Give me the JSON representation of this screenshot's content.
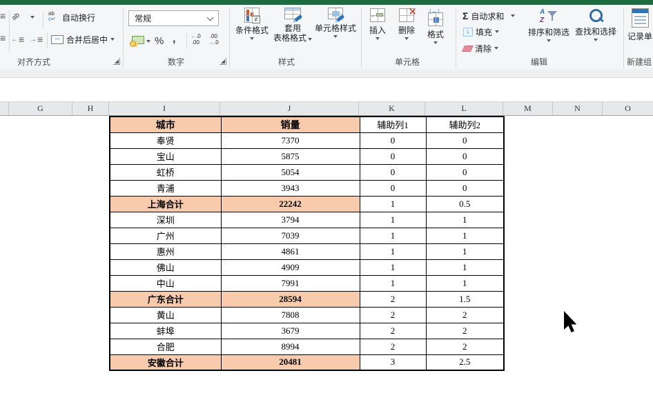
{
  "ribbon": {
    "alignment": {
      "group_label": "对齐方式",
      "wrap_text_label": "自动换行",
      "merge_center_label": "合并后居中"
    },
    "number": {
      "group_label": "数字",
      "format_value": "常规",
      "percent_label": "%",
      "comma_label": ",",
      "inc_top": ".0",
      "inc_bottom": ".00",
      "dec_top": ".00",
      "dec_bottom": ".0"
    },
    "styles": {
      "group_label": "样式",
      "conditional_formatting_label": "条件格式",
      "format_as_table_line1": "套用",
      "format_as_table_line2": "表格格式",
      "cell_styles_label": "单元格样式"
    },
    "cells": {
      "group_label": "单元格",
      "insert_label": "插入",
      "delete_label": "删除",
      "format_label": "格式"
    },
    "editing": {
      "group_label": "编辑",
      "autosum_label": "自动求和",
      "fill_label": "填充",
      "clear_label": "清除",
      "sort_filter_label": "排序和筛选",
      "find_select_label": "查找和选择"
    },
    "new_group": {
      "group_label": "新建组",
      "record_form_label": "记录单"
    }
  },
  "sheet": {
    "column_letters": [
      "G",
      "H",
      "I",
      "J",
      "K",
      "L",
      "M",
      "N",
      "O"
    ],
    "colors": {
      "summary_fill": "#F8CBAD",
      "titlebar_green": "#1E6B41"
    },
    "table": {
      "columns": [
        "城市",
        "销量",
        "辅助列1",
        "辅助列2"
      ],
      "rows": [
        {
          "cells": [
            "奉贤",
            "7370",
            "0",
            "0"
          ],
          "summary": false
        },
        {
          "cells": [
            "宝山",
            "5875",
            "0",
            "0"
          ],
          "summary": false
        },
        {
          "cells": [
            "虹桥",
            "5054",
            "0",
            "0"
          ],
          "summary": false
        },
        {
          "cells": [
            "青浦",
            "3943",
            "0",
            "0"
          ],
          "summary": false
        },
        {
          "cells": [
            "上海合计",
            "22242",
            "1",
            "0.5"
          ],
          "summary": true
        },
        {
          "cells": [
            "深圳",
            "3794",
            "1",
            "1"
          ],
          "summary": false
        },
        {
          "cells": [
            "广州",
            "7039",
            "1",
            "1"
          ],
          "summary": false
        },
        {
          "cells": [
            "惠州",
            "4861",
            "1",
            "1"
          ],
          "summary": false
        },
        {
          "cells": [
            "佛山",
            "4909",
            "1",
            "1"
          ],
          "summary": false
        },
        {
          "cells": [
            "中山",
            "7991",
            "1",
            "1"
          ],
          "summary": false
        },
        {
          "cells": [
            "广东合计",
            "28594",
            "2",
            "1.5"
          ],
          "summary": true
        },
        {
          "cells": [
            "黄山",
            "7808",
            "2",
            "2"
          ],
          "summary": false
        },
        {
          "cells": [
            "蚌埠",
            "3679",
            "2",
            "2"
          ],
          "summary": false
        },
        {
          "cells": [
            "合肥",
            "8994",
            "2",
            "2"
          ],
          "summary": false
        },
        {
          "cells": [
            "安徽合计",
            "20481",
            "3",
            "2.5"
          ],
          "summary": true
        }
      ]
    }
  }
}
